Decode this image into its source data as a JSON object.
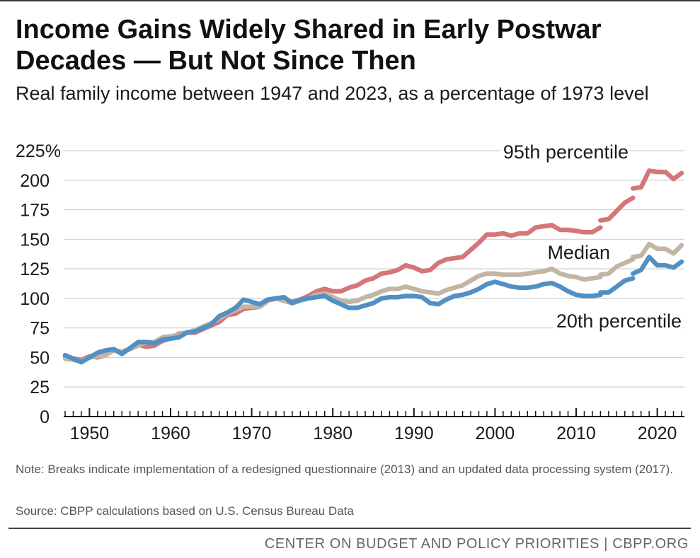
{
  "header": {
    "title": "Income Gains Widely Shared in Early Postwar Decades — But Not Since Then",
    "subtitle": "Real family income between 1947 and 2023, as a percentage of 1973 level"
  },
  "footer": {
    "note": "Note: Breaks indicate implementation of a redesigned questionnaire (2013) and an updated data processing system (2017).",
    "source": "Source: CBPP calculations based on U.S. Census Bureau Data",
    "credit": "CENTER ON BUDGET AND POLICY PRIORITIES | CBPP.ORG"
  },
  "chart_data": {
    "type": "line",
    "title": "Income Gains Widely Shared in Early Postwar Decades — But Not Since Then",
    "subtitle": "Real family income between 1947 and 2023, as a percentage of 1973 level",
    "xlabel": "",
    "ylabel": "",
    "xlim": [
      1947,
      2023
    ],
    "ylim": [
      0,
      225
    ],
    "yticks": [
      0,
      25,
      50,
      75,
      100,
      125,
      150,
      175,
      200,
      225
    ],
    "ytick_labels": [
      "0",
      "25",
      "50",
      "75",
      "100",
      "125",
      "150",
      "175",
      "200",
      "225"
    ],
    "y_unit_suffix": "%",
    "xticks_major": [
      1950,
      1960,
      1970,
      1980,
      1990,
      2000,
      2010,
      2020
    ],
    "xtick_labels": [
      "1950",
      "1960",
      "1970",
      "1980",
      "1990",
      "2000",
      "2010",
      "2020"
    ],
    "grid": "horizontal",
    "breaks": [
      2013,
      2017
    ],
    "series": [
      {
        "name": "95th percentile",
        "label": "95th percentile",
        "color": "#d4767a",
        "x": [
          1947,
          1948,
          1949,
          1950,
          1951,
          1952,
          1953,
          1954,
          1955,
          1956,
          1957,
          1958,
          1959,
          1960,
          1961,
          1962,
          1963,
          1964,
          1965,
          1966,
          1967,
          1968,
          1969,
          1970,
          1971,
          1972,
          1973,
          1974,
          1975,
          1976,
          1977,
          1978,
          1979,
          1980,
          1981,
          1982,
          1983,
          1984,
          1985,
          1986,
          1987,
          1988,
          1989,
          1990,
          1991,
          1992,
          1993,
          1994,
          1995,
          1996,
          1997,
          1998,
          1999,
          2000,
          2001,
          2002,
          2003,
          2004,
          2005,
          2006,
          2007,
          2008,
          2009,
          2010,
          2011,
          2012,
          2013,
          2013,
          2014,
          2015,
          2016,
          2017,
          2017,
          2018,
          2019,
          2020,
          2021,
          2022,
          2023
        ],
        "values": [
          51,
          49,
          48,
          51,
          50,
          52,
          56,
          55,
          57,
          61,
          59,
          60,
          64,
          66,
          70,
          71,
          71,
          74,
          77,
          80,
          86,
          87,
          91,
          92,
          93,
          98,
          100,
          98,
          97,
          99,
          102,
          106,
          108,
          106,
          106,
          109,
          111,
          115,
          117,
          121,
          122,
          124,
          128,
          126,
          123,
          124,
          130,
          133,
          134,
          135,
          141,
          147,
          154,
          154,
          155,
          153,
          155,
          155,
          160,
          161,
          162,
          158,
          158,
          157,
          156,
          156,
          160,
          166,
          167,
          174,
          181,
          185,
          193,
          194,
          208,
          207,
          207,
          201,
          206
        ]
      },
      {
        "name": "Median",
        "label": "Median",
        "color": "#c3b5a4",
        "x": [
          1947,
          1948,
          1949,
          1950,
          1951,
          1952,
          1953,
          1954,
          1955,
          1956,
          1957,
          1958,
          1959,
          1960,
          1961,
          1962,
          1963,
          1964,
          1965,
          1966,
          1967,
          1968,
          1969,
          1970,
          1971,
          1972,
          1973,
          1974,
          1975,
          1976,
          1977,
          1978,
          1979,
          1980,
          1981,
          1982,
          1983,
          1984,
          1985,
          1986,
          1987,
          1988,
          1989,
          1990,
          1991,
          1992,
          1993,
          1994,
          1995,
          1996,
          1997,
          1998,
          1999,
          2000,
          2001,
          2002,
          2003,
          2004,
          2005,
          2006,
          2007,
          2008,
          2009,
          2010,
          2011,
          2012,
          2013,
          2013,
          2014,
          2015,
          2016,
          2017,
          2017,
          2018,
          2019,
          2020,
          2021,
          2022,
          2023
        ],
        "values": [
          49,
          48,
          47,
          50,
          51,
          52,
          56,
          55,
          57,
          60,
          63,
          63,
          67,
          68,
          69,
          71,
          73,
          76,
          79,
          83,
          87,
          90,
          93,
          93,
          93,
          98,
          100,
          98,
          96,
          98,
          100,
          103,
          104,
          101,
          98,
          97,
          98,
          101,
          103,
          106,
          108,
          108,
          110,
          108,
          106,
          105,
          104,
          107,
          109,
          111,
          115,
          119,
          121,
          121,
          120,
          120,
          120,
          121,
          122,
          123,
          125,
          121,
          119,
          118,
          116,
          117,
          118,
          120,
          121,
          127,
          130,
          133,
          135,
          136,
          146,
          142,
          142,
          138,
          145
        ]
      },
      {
        "name": "20th percentile",
        "label": "20th percentile",
        "color": "#5190c4",
        "x": [
          1947,
          1948,
          1949,
          1950,
          1951,
          1952,
          1953,
          1954,
          1955,
          1956,
          1957,
          1958,
          1959,
          1960,
          1961,
          1962,
          1963,
          1964,
          1965,
          1966,
          1967,
          1968,
          1969,
          1970,
          1971,
          1972,
          1973,
          1974,
          1975,
          1976,
          1977,
          1978,
          1979,
          1980,
          1981,
          1982,
          1983,
          1984,
          1985,
          1986,
          1987,
          1988,
          1989,
          1990,
          1991,
          1992,
          1993,
          1994,
          1995,
          1996,
          1997,
          1998,
          1999,
          2000,
          2001,
          2002,
          2003,
          2004,
          2005,
          2006,
          2007,
          2008,
          2009,
          2010,
          2011,
          2012,
          2013,
          2013,
          2014,
          2015,
          2016,
          2017,
          2017,
          2018,
          2019,
          2020,
          2021,
          2022,
          2023
        ],
        "values": [
          52,
          49,
          46,
          50,
          54,
          56,
          57,
          53,
          58,
          63,
          63,
          62,
          65,
          66,
          67,
          71,
          72,
          75,
          78,
          85,
          88,
          92,
          99,
          97,
          95,
          99,
          100,
          101,
          96,
          99,
          100,
          101,
          102,
          98,
          95,
          92,
          92,
          94,
          96,
          100,
          101,
          101,
          102,
          102,
          101,
          96,
          95,
          99,
          102,
          103,
          105,
          108,
          112,
          114,
          112,
          110,
          109,
          109,
          110,
          112,
          113,
          110,
          106,
          103,
          102,
          102,
          103,
          105,
          105,
          110,
          115,
          117,
          121,
          124,
          135,
          128,
          128,
          126,
          131
        ]
      }
    ]
  }
}
